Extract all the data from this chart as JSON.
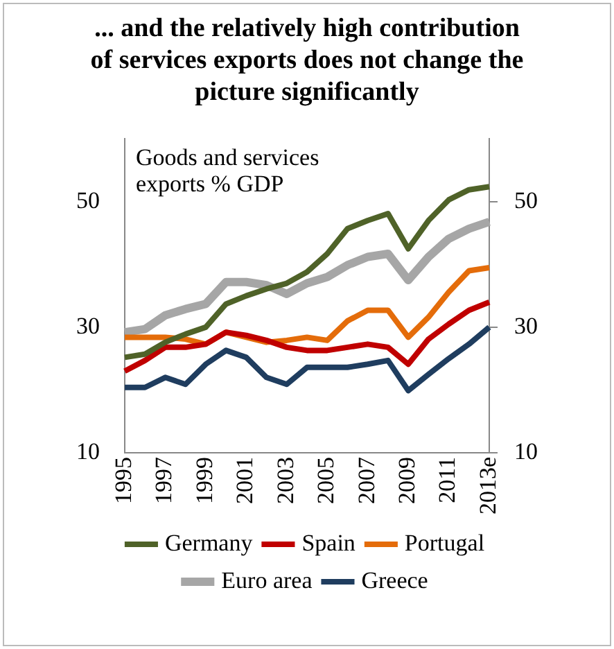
{
  "chart_data": {
    "type": "line",
    "title": "... and the relatively  high contribution of services  exports does not change the picture significantly",
    "categories": [
      "1995",
      null,
      "1997",
      null,
      "1999",
      null,
      "2001",
      null,
      "2003",
      null,
      "2005",
      null,
      "2007",
      null,
      "2009",
      null,
      "2011",
      null,
      "2013e"
    ],
    "series": [
      {
        "name": "Germany",
        "color": "#4f6228",
        "values": [
          25.2,
          25.7,
          27.6,
          28.9,
          30,
          33.7,
          35,
          36.1,
          37,
          38.8,
          41.7,
          45.7,
          47,
          48.1,
          42.5,
          47,
          50.3,
          51.9,
          52.4
        ]
      },
      {
        "name": "Spain",
        "color": "#c00000",
        "values": [
          23,
          24.7,
          26.8,
          26.8,
          27.3,
          29.2,
          28.7,
          27.9,
          26.8,
          26.3,
          26.3,
          26.8,
          27.3,
          26.8,
          24.1,
          28.1,
          30.5,
          32.7,
          34
        ]
      },
      {
        "name": "Portugal",
        "color": "#e46c0a",
        "values": [
          28.4,
          28.4,
          28.4,
          28.1,
          27.3,
          29.2,
          28.4,
          27.6,
          27.9,
          28.4,
          27.9,
          31,
          32.7,
          32.7,
          28.4,
          31.6,
          35.6,
          39,
          39.5
        ]
      },
      {
        "name": "Euro area",
        "color": "#a6a6a6",
        "values": [
          29.2,
          29.7,
          31.9,
          32.9,
          33.7,
          37.2,
          37.2,
          36.7,
          35.3,
          37,
          38,
          39.9,
          41.2,
          41.7,
          37.5,
          41.2,
          44.1,
          45.7,
          46.8
        ]
      },
      {
        "name": "Greece",
        "color": "#1f3d5f",
        "values": [
          20.4,
          20.4,
          22,
          20.9,
          24.1,
          26.3,
          25.2,
          22,
          20.9,
          23.6,
          23.6,
          23.6,
          24.1,
          24.7,
          19.9,
          22.5,
          25,
          27.3,
          30
        ]
      }
    ],
    "ylim": [
      10,
      60
    ],
    "yticks": [
      10,
      30,
      50
    ],
    "y2lim": [
      10,
      60
    ],
    "y2ticks": [
      10,
      30,
      50
    ],
    "annotations": [
      "Goods and services exports % GDP"
    ],
    "legend": "bottom",
    "grid": false,
    "marker": "none",
    "line_style": "solid"
  }
}
